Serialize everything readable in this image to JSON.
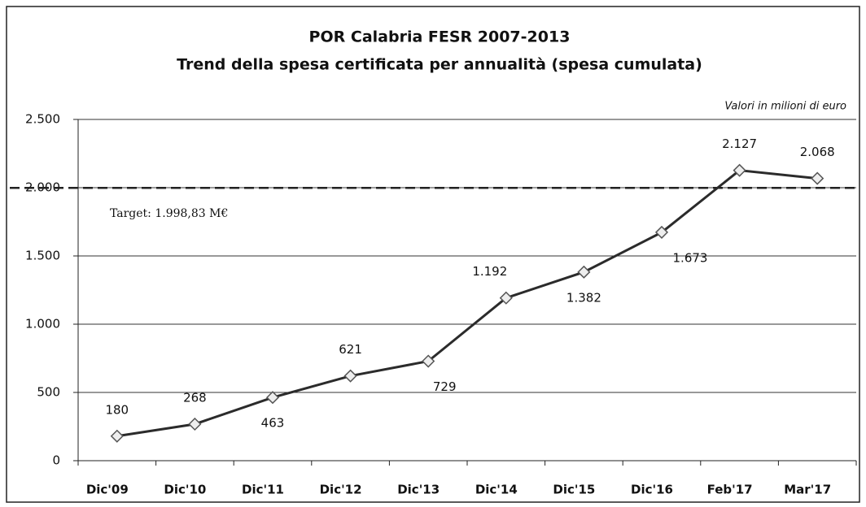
{
  "chart_data": {
    "type": "line",
    "title": "POR Calabria FESR 2007-2013",
    "subtitle": "Trend della spesa certificata per annualità (spesa cumulata)",
    "annotation": "Valori in milioni di euro",
    "target": {
      "value": 1998.83,
      "label": "Target: 1.998,83 M€"
    },
    "categories": [
      "Dic'09",
      "Dic'10",
      "Dic'11",
      "Dic'12",
      "Dic'13",
      "Dic'14",
      "Dic'15",
      "Dic'16",
      "Feb'17",
      "Mar'17"
    ],
    "values": [
      180,
      268,
      463,
      621,
      729,
      1192,
      1382,
      1673,
      2127,
      2068
    ],
    "value_labels": [
      "180",
      "268",
      "463",
      "621",
      "729",
      "1.192",
      "1.382",
      "1.673",
      "2.127",
      "2.068"
    ],
    "color": "#2b2b2b",
    "ylim": [
      0,
      2500
    ],
    "yticks": [
      0,
      500,
      {
        "value": 1000,
        "label": "1.000"
      },
      {
        "value": 1500,
        "label": "1.500"
      },
      {
        "value": 2000,
        "label": "2.000"
      },
      {
        "value": 2500,
        "label": "2.500"
      }
    ],
    "grid": true
  }
}
